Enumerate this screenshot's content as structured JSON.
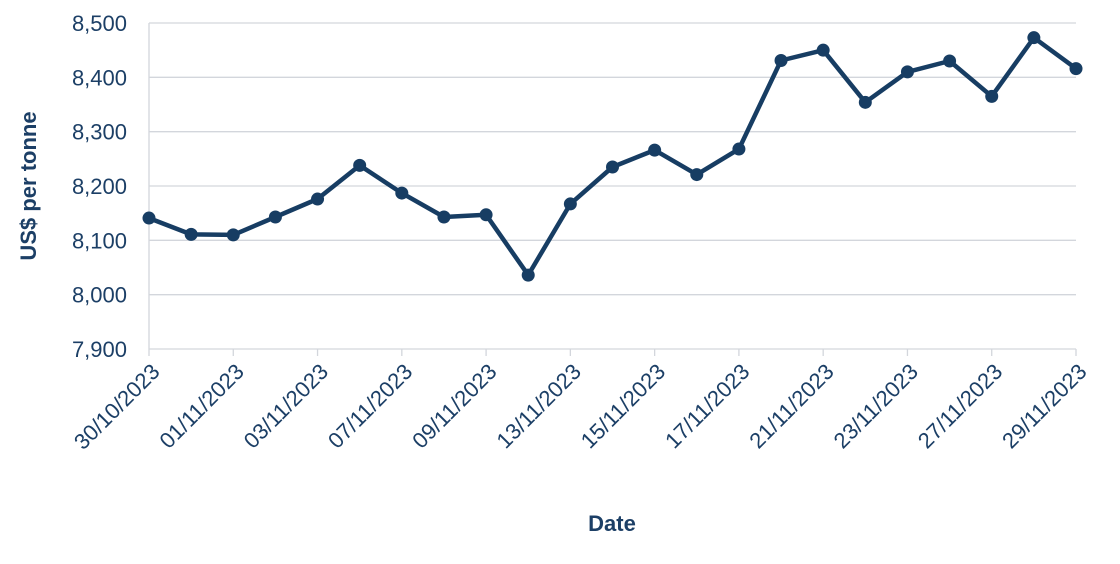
{
  "chart_data": {
    "type": "line",
    "title": "",
    "xlabel": "Date",
    "ylabel": "US$ per tonne",
    "ylim": [
      7900,
      8500
    ],
    "yticks": [
      "7,900",
      "8,000",
      "8,100",
      "8,200",
      "8,300",
      "8,400",
      "8,500"
    ],
    "ytick_values": [
      7900,
      8000,
      8100,
      8200,
      8300,
      8400,
      8500
    ],
    "grid": true,
    "line_color": "#173d63",
    "x": [
      "30/10/2023",
      "31/10/2023",
      "01/11/2023",
      "02/11/2023",
      "03/11/2023",
      "06/11/2023",
      "07/11/2023",
      "08/11/2023",
      "09/11/2023",
      "10/11/2023",
      "13/11/2023",
      "14/11/2023",
      "15/11/2023",
      "16/11/2023",
      "17/11/2023",
      "20/11/2023",
      "21/11/2023",
      "22/11/2023",
      "23/11/2023",
      "24/11/2023",
      "27/11/2023",
      "28/11/2023",
      "29/11/2023"
    ],
    "xtick_labels": [
      "30/10/2023",
      "01/11/2023",
      "03/11/2023",
      "07/11/2023",
      "09/11/2023",
      "13/11/2023",
      "15/11/2023",
      "17/11/2023",
      "21/11/2023",
      "23/11/2023",
      "27/11/2023",
      "29/11/2023"
    ],
    "series": [
      {
        "values": [
          8141,
          8111,
          8110,
          8143,
          8176,
          8238,
          8187,
          8143,
          8147,
          8036,
          8167,
          8235,
          8266,
          8221,
          8268,
          8431,
          8450,
          8354,
          8410,
          8430,
          8365,
          8473,
          8416
        ]
      }
    ]
  }
}
